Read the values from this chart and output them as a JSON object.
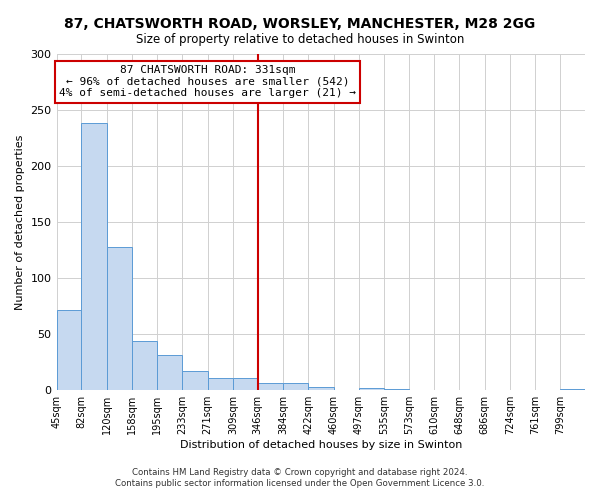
{
  "title": "87, CHATSWORTH ROAD, WORSLEY, MANCHESTER, M28 2GG",
  "subtitle": "Size of property relative to detached houses in Swinton",
  "xlabel": "Distribution of detached houses by size in Swinton",
  "ylabel": "Number of detached properties",
  "footer_line1": "Contains HM Land Registry data © Crown copyright and database right 2024.",
  "footer_line2": "Contains public sector information licensed under the Open Government Licence 3.0.",
  "bin_labels": [
    "45sqm",
    "82sqm",
    "120sqm",
    "158sqm",
    "195sqm",
    "233sqm",
    "271sqm",
    "309sqm",
    "346sqm",
    "384sqm",
    "422sqm",
    "460sqm",
    "497sqm",
    "535sqm",
    "573sqm",
    "610sqm",
    "648sqm",
    "686sqm",
    "724sqm",
    "761sqm",
    "799sqm"
  ],
  "bar_values": [
    72,
    238,
    128,
    44,
    31,
    17,
    11,
    11,
    6,
    6,
    3,
    0,
    2,
    1,
    0,
    0,
    0,
    0,
    0,
    0,
    1
  ],
  "bar_color": "#c6d9f0",
  "bar_edge_color": "#5b9bd5",
  "vline_bin_index": 8,
  "property_line_label": "87 CHATSWORTH ROAD: 331sqm",
  "annotation_line2": "← 96% of detached houses are smaller (542)",
  "annotation_line3": "4% of semi-detached houses are larger (21) →",
  "vline_color": "#cc0000",
  "annotation_box_edge_color": "#cc0000",
  "ylim": [
    0,
    300
  ],
  "yticks": [
    0,
    50,
    100,
    150,
    200,
    250,
    300
  ],
  "bin_edges": [
    45,
    82,
    120,
    158,
    195,
    233,
    271,
    309,
    346,
    384,
    422,
    460,
    497,
    535,
    573,
    610,
    648,
    686,
    724,
    761,
    799
  ]
}
